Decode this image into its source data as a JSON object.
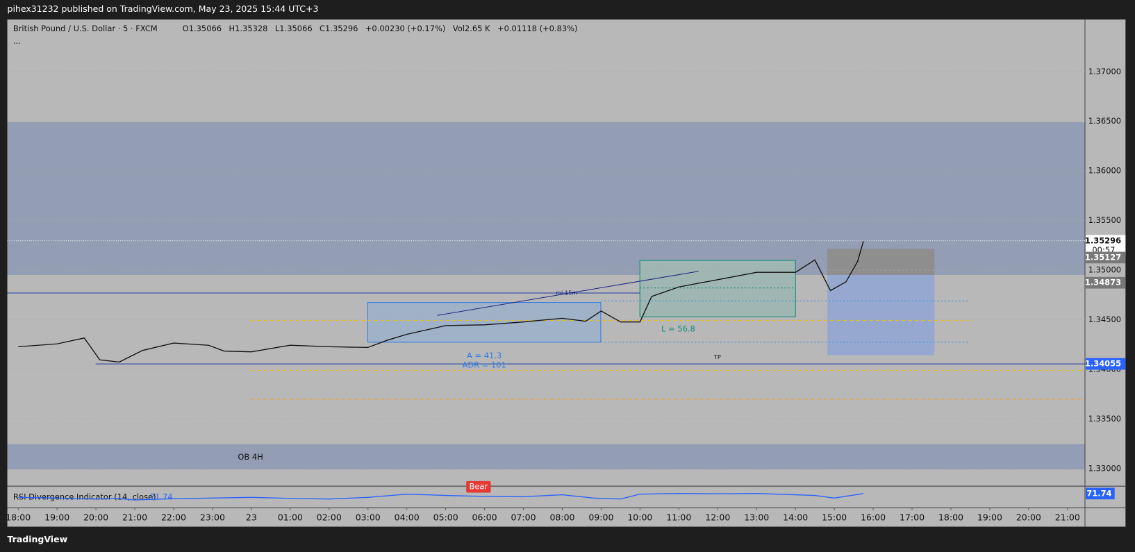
{
  "header": {
    "published": "pihex31232 published on TradingView.com, May 23, 2025 15:44 UTC+3",
    "brand": "TradingView"
  },
  "chart_data": {
    "type": "line",
    "title": "British Pound / U.S. Dollar · 5 · FXCM",
    "ohlc": [
      "O1.35066",
      "H1.35328",
      "L1.35066",
      "C1.35296",
      "+0.00230 (+0.17%)",
      "Vol2.65 K",
      "+0.01118 (+0.83%)"
    ],
    "more": "...",
    "series": [
      {
        "color": "#111111",
        "x": [
          0,
          1,
          1.7,
          2.1,
          2.6,
          3.2,
          4,
          4.9,
          5.3,
          6,
          7,
          8,
          9,
          9.5,
          10,
          11,
          12,
          13,
          14,
          14.6,
          15,
          15.5,
          16,
          16.3,
          17,
          18,
          19,
          20,
          20.5,
          20.9,
          21.3,
          21.6,
          21.75
        ],
        "values": [
          1.34228,
          1.34257,
          1.34316,
          1.34096,
          1.34074,
          1.34191,
          1.34265,
          1.34243,
          1.34184,
          1.34177,
          1.34243,
          1.34228,
          1.34221,
          1.34294,
          1.34353,
          1.34441,
          1.34449,
          1.34478,
          1.34515,
          1.34485,
          1.34588,
          1.34478,
          1.34478,
          1.34735,
          1.34831,
          1.34904,
          1.34978,
          1.34978,
          1.35103,
          1.34794,
          1.34882,
          1.35088,
          1.35294
        ]
      }
    ],
    "xlim": [
      -0.28,
      27.45
    ],
    "xticks": [
      {
        "value": 0,
        "label": "18:00"
      },
      {
        "value": 1,
        "label": "19:00"
      },
      {
        "value": 2,
        "label": "20:00"
      },
      {
        "value": 3,
        "label": "21:00"
      },
      {
        "value": 4,
        "label": "22:00"
      },
      {
        "value": 5,
        "label": "23:00"
      },
      {
        "value": 6,
        "label": "23"
      },
      {
        "value": 7,
        "label": "01:00"
      },
      {
        "value": 8,
        "label": "02:00"
      },
      {
        "value": 9,
        "label": "03:00"
      },
      {
        "value": 10,
        "label": "04:00"
      },
      {
        "value": 11,
        "label": "05:00"
      },
      {
        "value": 12,
        "label": "06:00"
      },
      {
        "value": 13,
        "label": "07:00"
      },
      {
        "value": 14,
        "label": "08:00"
      },
      {
        "value": 15,
        "label": "09:00"
      },
      {
        "value": 16,
        "label": "10:00"
      },
      {
        "value": 17,
        "label": "11:00"
      },
      {
        "value": 18,
        "label": "12:00"
      },
      {
        "value": 19,
        "label": "13:00"
      },
      {
        "value": 20,
        "label": "14:00"
      },
      {
        "value": 21,
        "label": "15:00"
      },
      {
        "value": 22,
        "label": "16:00"
      },
      {
        "value": 23,
        "label": "17:00"
      },
      {
        "value": 24,
        "label": "18:00"
      },
      {
        "value": 25,
        "label": "19:00"
      },
      {
        "value": 26,
        "label": "20:00"
      },
      {
        "value": 27,
        "label": "21:00"
      }
    ],
    "ylim": [
      1.3283,
      1.37526
    ],
    "yticks": [
      {
        "value": 1.37,
        "label": "1.37000"
      },
      {
        "value": 1.365,
        "label": "1.36500"
      },
      {
        "value": 1.36,
        "label": "1.36000"
      },
      {
        "value": 1.355,
        "label": "1.35500"
      },
      {
        "value": 1.35,
        "label": "1.35000"
      },
      {
        "value": 1.345,
        "label": "1.34500"
      },
      {
        "value": 1.34,
        "label": "1.34000"
      },
      {
        "value": 1.335,
        "label": "1.33500"
      },
      {
        "value": 1.33,
        "label": "1.33000"
      }
    ],
    "price_labels": [
      {
        "value": 1.35296,
        "label": "1.35296",
        "color": "#ffffff"
      },
      {
        "value": 1.35127,
        "label": "1.35127",
        "color": "#787878"
      },
      {
        "value": 1.34873,
        "label": "1.34873",
        "color": "#787878"
      },
      {
        "value": 1.34055,
        "label": "1.34055",
        "color": "#2962ff"
      }
    ],
    "countdown": "00:57",
    "annotations": [
      {
        "text": "rsi 15m",
        "color": "#1a237e"
      },
      {
        "text": "L = 56.8",
        "color": "#138a78"
      },
      {
        "text": "A = 41.3",
        "color": "#2f7de1"
      },
      {
        "text": "ADR = 101",
        "color": "#2f7de1"
      },
      {
        "text": "TP",
        "color": "#111111"
      },
      {
        "text": "OB 4H",
        "color": "#111111"
      },
      {
        "text": "Bear",
        "color": "#ffffff"
      }
    ],
    "rsi": {
      "title": "RSI Divergence Indicator (14, close)",
      "color": "#2962ff",
      "ylim": [
        30,
        90
      ],
      "x": [
        0,
        1,
        2,
        2.5,
        3,
        4,
        5,
        6,
        7,
        8,
        9,
        10,
        11,
        12,
        13,
        14,
        14.8,
        15.5,
        16,
        17,
        18,
        19,
        20,
        20.5,
        21,
        21.75
      ],
      "values": [
        60,
        58,
        55,
        57,
        52,
        56,
        58,
        60,
        57,
        55,
        60,
        70,
        66,
        63,
        62,
        68,
        58,
        55,
        70,
        72,
        71,
        72,
        68,
        66,
        58,
        71.74
      ]
    }
  }
}
